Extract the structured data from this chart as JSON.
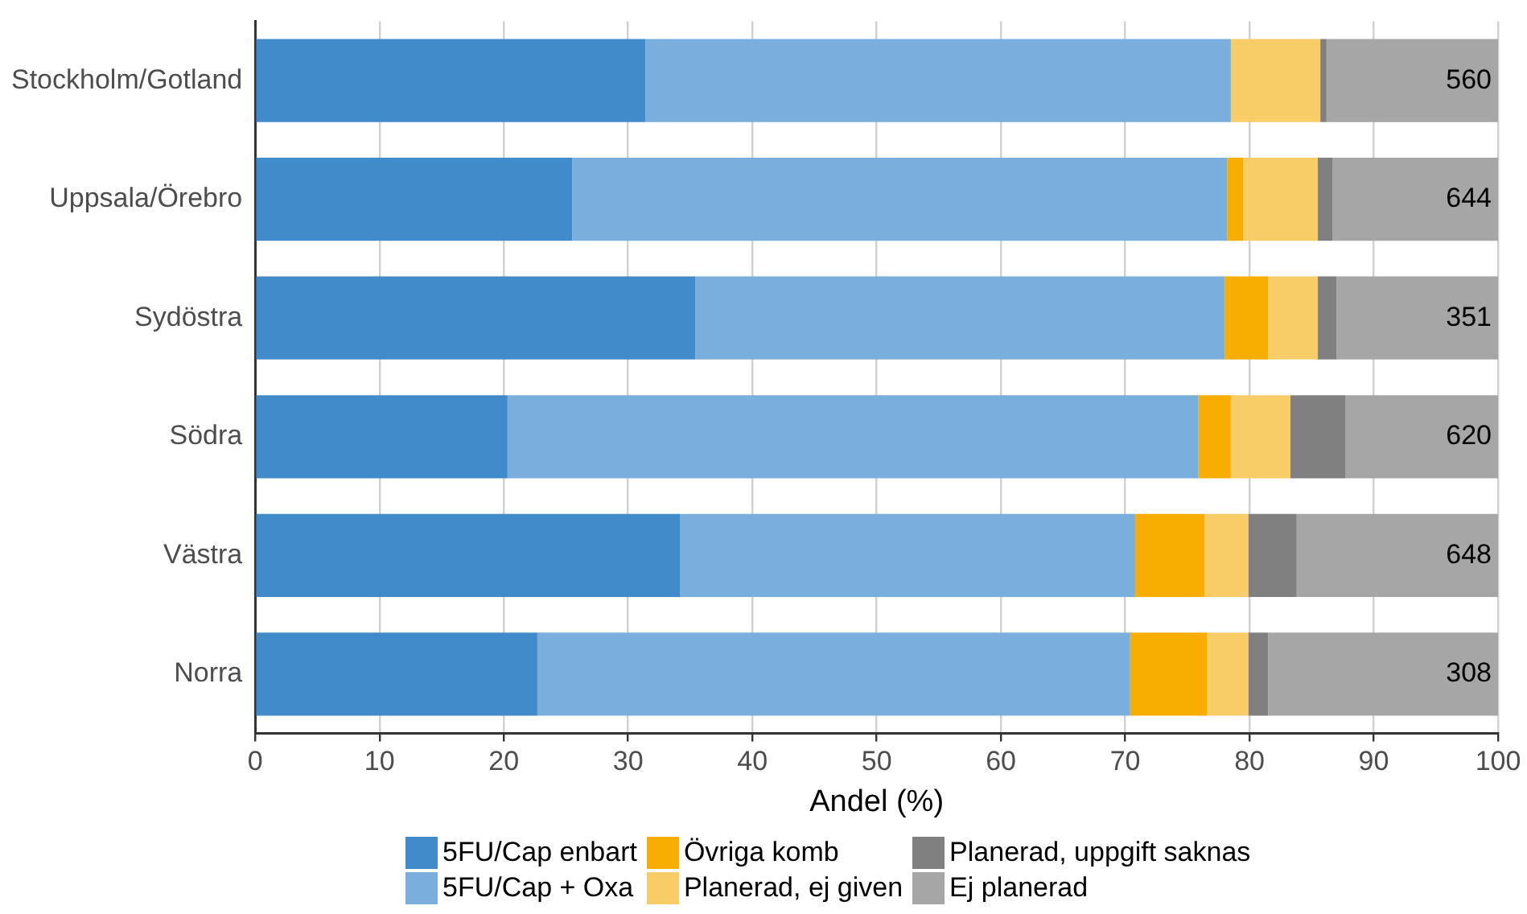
{
  "chart_data": {
    "type": "bar",
    "orientation": "horizontal",
    "stacked": true,
    "xlabel": "Andel (%)",
    "categories": [
      "Stockholm/Gotland",
      "Uppsala/Örebro",
      "Sydöstra",
      "Södra",
      "Västra",
      "Norra"
    ],
    "series": [
      {
        "name": "5FU/Cap enbart",
        "color": "#428bca",
        "values": [
          31.4,
          25.5,
          35.4,
          20.3,
          34.2,
          22.7
        ]
      },
      {
        "name": "5FU/Cap + Oxa",
        "color": "#7aaedc",
        "values": [
          47.1,
          52.7,
          42.6,
          55.6,
          36.6,
          47.7
        ]
      },
      {
        "name": "Övriga komb",
        "color": "#f8ae00",
        "values": [
          0,
          1.3,
          3.5,
          2.6,
          5.6,
          6.2
        ]
      },
      {
        "name": "Planerad, ej given",
        "color": "#f8cd68",
        "values": [
          7.2,
          6.0,
          4.0,
          4.8,
          3.5,
          3.3
        ]
      },
      {
        "name": "Planerad, uppgift saknas",
        "color": "#808080",
        "values": [
          0.5,
          1.2,
          1.5,
          4.4,
          3.9,
          1.6
        ]
      },
      {
        "name": "Ej planerad",
        "color": "#a6a6a6",
        "values": [
          13.8,
          13.3,
          13.0,
          12.3,
          16.2,
          18.5
        ]
      }
    ],
    "xlim": [
      0,
      100
    ],
    "xticks": [
      0,
      10,
      20,
      30,
      40,
      50,
      60,
      70,
      80,
      90,
      100
    ],
    "grid": "x",
    "legend": "bottom",
    "annotations": [
      {
        "text": "560",
        "y": "Stockholm/Gotland"
      },
      {
        "text": "644",
        "y": "Uppsala/Örebro"
      },
      {
        "text": "351",
        "y": "Sydöstra"
      },
      {
        "text": "620",
        "y": "Södra"
      },
      {
        "text": "648",
        "y": "Västra"
      },
      {
        "text": "308",
        "y": "Norra"
      }
    ]
  }
}
